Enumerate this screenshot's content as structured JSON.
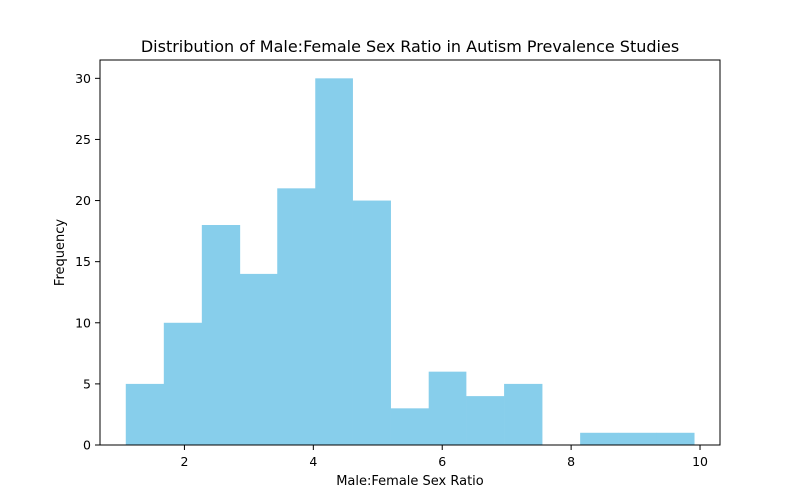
{
  "chart_data": {
    "type": "bar",
    "title": "Distribution of Male:Female Sex Ratio in Autism Prevalence Studies",
    "xlabel": "Male:Female Sex Ratio",
    "ylabel": "Frequency",
    "bar_color": "#87ceeb",
    "grid": false,
    "xlim": [
      0.69,
      10.31
    ],
    "ylim": [
      0,
      31.5
    ],
    "xticks": [
      2,
      4,
      6,
      8,
      10
    ],
    "yticks": [
      0,
      5,
      10,
      15,
      20,
      25,
      30
    ],
    "bins": [
      {
        "x0": 1.09,
        "x1": 1.68,
        "count": 5
      },
      {
        "x0": 1.68,
        "x1": 2.27,
        "count": 10
      },
      {
        "x0": 2.27,
        "x1": 2.86,
        "count": 18
      },
      {
        "x0": 2.86,
        "x1": 3.44,
        "count": 14
      },
      {
        "x0": 3.44,
        "x1": 4.03,
        "count": 21
      },
      {
        "x0": 4.03,
        "x1": 4.61,
        "count": 30
      },
      {
        "x0": 4.61,
        "x1": 5.2,
        "count": 20
      },
      {
        "x0": 5.2,
        "x1": 5.79,
        "count": 3
      },
      {
        "x0": 5.79,
        "x1": 6.37,
        "count": 6
      },
      {
        "x0": 6.37,
        "x1": 6.96,
        "count": 4
      },
      {
        "x0": 6.96,
        "x1": 7.55,
        "count": 5
      },
      {
        "x0": 7.55,
        "x1": 8.14,
        "count": 0
      },
      {
        "x0": 8.14,
        "x1": 8.73,
        "count": 1
      },
      {
        "x0": 8.73,
        "x1": 9.32,
        "count": 1
      },
      {
        "x0": 9.32,
        "x1": 9.91,
        "count": 1
      }
    ]
  }
}
